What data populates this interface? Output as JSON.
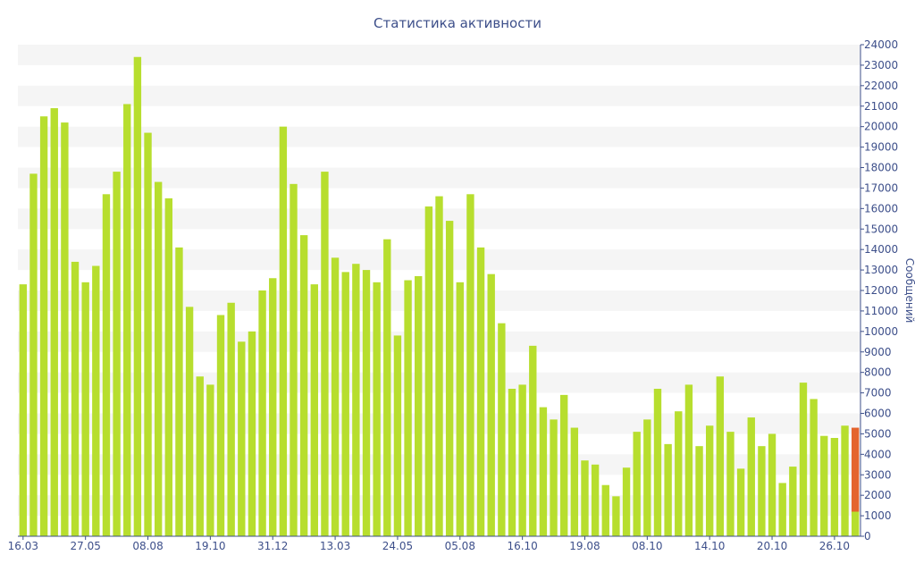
{
  "chart_data": {
    "type": "bar",
    "title": "Статистика активности",
    "ylabel": "Сообщений",
    "ylim": [
      0,
      24000
    ],
    "y_ticks": [
      0,
      1000,
      2000,
      3000,
      4000,
      5000,
      6000,
      7000,
      8000,
      9000,
      10000,
      11000,
      12000,
      13000,
      14000,
      15000,
      16000,
      17000,
      18000,
      19000,
      20000,
      21000,
      22000,
      23000,
      24000
    ],
    "y_axis_position": "right",
    "grid": "horizontal-bands",
    "x_tick_labels": [
      {
        "index": 0,
        "label": "16.03"
      },
      {
        "index": 6,
        "label": "27.05"
      },
      {
        "index": 12,
        "label": "08.08"
      },
      {
        "index": 18,
        "label": "19.10"
      },
      {
        "index": 24,
        "label": "31.12"
      },
      {
        "index": 30,
        "label": "13.03"
      },
      {
        "index": 36,
        "label": "24.05"
      },
      {
        "index": 42,
        "label": "05.08"
      },
      {
        "index": 48,
        "label": "16.10"
      },
      {
        "index": 54,
        "label": "19.08"
      },
      {
        "index": 60,
        "label": "08.10"
      },
      {
        "index": 66,
        "label": "14.10"
      },
      {
        "index": 72,
        "label": "20.10"
      },
      {
        "index": 78,
        "label": "26.10"
      }
    ],
    "values": [
      12300,
      17700,
      20500,
      20900,
      20200,
      13400,
      12400,
      13200,
      16700,
      17800,
      21100,
      23400,
      19700,
      17300,
      16500,
      14100,
      11200,
      7800,
      7400,
      10800,
      11400,
      9500,
      10000,
      12000,
      12600,
      20000,
      17200,
      14700,
      12300,
      17800,
      13600,
      12900,
      13300,
      13000,
      12400,
      14500,
      9800,
      12500,
      12700,
      16100,
      16600,
      15400,
      12400,
      16700,
      14100,
      12800,
      10400,
      7200,
      7400,
      9300,
      6300,
      5700,
      6900,
      5300,
      3700,
      3500,
      2500,
      1950,
      3350,
      5100,
      5700,
      7200,
      4500,
      6100,
      7400,
      4400,
      5400,
      7800,
      5100,
      3300,
      5800,
      4400,
      5000,
      2600,
      3400,
      7500,
      6700,
      4900,
      4800,
      5400,
      1200
    ],
    "highlight": {
      "index": 80,
      "base": 1200,
      "extra": 4100,
      "color": "#e4642e"
    },
    "colors": {
      "bar": "#b7de2e",
      "highlight": "#e4642e",
      "band": "#f5f5f5",
      "axis": "#3d4f8a",
      "text": "#3d4f8a"
    }
  }
}
